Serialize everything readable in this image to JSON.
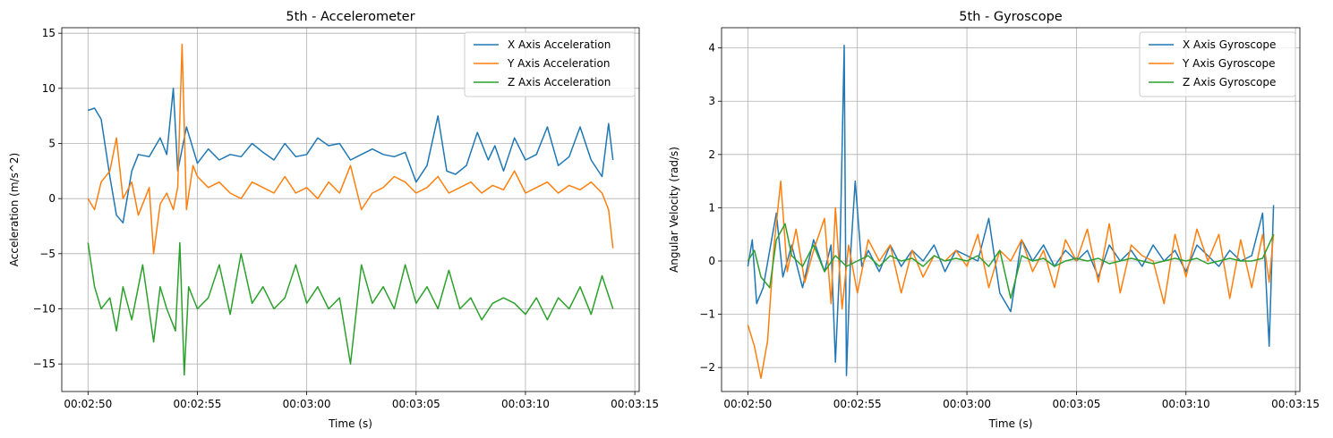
{
  "chart_data": [
    {
      "type": "line",
      "title": "5th - Accelerometer",
      "xlabel": "Time (s)",
      "ylabel": "Acceleration (m/s^2)",
      "xlim": [
        "00:02:48.8",
        "00:03:15.2"
      ],
      "ylim": [
        -17.5,
        15.5
      ],
      "xticks": [
        "00:02:50",
        "00:02:55",
        "00:03:00",
        "00:03:05",
        "00:03:10",
        "00:03:15"
      ],
      "yticks": [
        -15,
        -10,
        -5,
        0,
        5,
        10,
        15
      ],
      "grid": true,
      "legend": "top-right",
      "series": [
        {
          "name": "X Axis Acceleration",
          "color": "#1f77b4",
          "x": [
            "00:02:50.0",
            "00:02:50.3",
            "00:02:50.6",
            "00:02:51.0",
            "00:02:51.3",
            "00:02:51.6",
            "00:02:52.0",
            "00:02:52.3",
            "00:02:52.8",
            "00:02:53.3",
            "00:02:53.6",
            "00:02:53.9",
            "00:02:54.1",
            "00:02:54.5",
            "00:02:55.0",
            "00:02:55.5",
            "00:02:56.0",
            "00:02:56.5",
            "00:02:57.0",
            "00:02:57.5",
            "00:02:58.0",
            "00:02:58.5",
            "00:02:59.0",
            "00:02:59.5",
            "00:03:00.0",
            "00:03:00.5",
            "00:03:01.0",
            "00:03:01.5",
            "00:03:02.0",
            "00:03:02.5",
            "00:03:03.0",
            "00:03:03.5",
            "00:03:04.0",
            "00:03:04.5",
            "00:03:05.0",
            "00:03:05.5",
            "00:03:06.0",
            "00:03:06.4",
            "00:03:06.8",
            "00:03:07.3",
            "00:03:07.8",
            "00:03:08.3",
            "00:03:08.6",
            "00:03:09.0",
            "00:03:09.5",
            "00:03:10.0",
            "00:03:10.5",
            "00:03:11.0",
            "00:03:11.5",
            "00:03:12.0",
            "00:03:12.5",
            "00:03:13.0",
            "00:03:13.5",
            "00:03:13.8",
            "00:03:14.0"
          ],
          "y": [
            8.0,
            8.2,
            7.2,
            2.0,
            -1.5,
            -2.2,
            2.5,
            4.0,
            3.8,
            5.5,
            4.0,
            10.0,
            2.5,
            6.5,
            3.2,
            4.5,
            3.5,
            4.0,
            3.8,
            5.0,
            4.2,
            3.5,
            5.0,
            3.8,
            4.0,
            5.5,
            4.8,
            5.0,
            3.5,
            4.0,
            4.5,
            4.0,
            3.8,
            4.2,
            1.5,
            3.0,
            7.5,
            2.5,
            2.2,
            3.0,
            6.0,
            3.5,
            4.8,
            2.5,
            5.5,
            3.5,
            4.0,
            6.5,
            3.0,
            3.8,
            6.5,
            3.5,
            2.0,
            6.8,
            3.5
          ]
        },
        {
          "name": "Y Axis Acceleration",
          "color": "#ff7f0e",
          "x": [
            "00:02:50.0",
            "00:02:50.3",
            "00:02:50.6",
            "00:02:51.0",
            "00:02:51.3",
            "00:02:51.6",
            "00:02:52.0",
            "00:02:52.3",
            "00:02:52.8",
            "00:02:53.0",
            "00:02:53.3",
            "00:02:53.6",
            "00:02:53.9",
            "00:02:54.1",
            "00:02:54.3",
            "00:02:54.5",
            "00:02:54.8",
            "00:02:55.0",
            "00:02:55.5",
            "00:02:56.0",
            "00:02:56.5",
            "00:02:57.0",
            "00:02:57.5",
            "00:02:58.0",
            "00:02:58.5",
            "00:02:59.0",
            "00:02:59.5",
            "00:03:00.0",
            "00:03:00.5",
            "00:03:01.0",
            "00:03:01.5",
            "00:03:02.0",
            "00:03:02.5",
            "00:03:03.0",
            "00:03:03.5",
            "00:03:04.0",
            "00:03:04.5",
            "00:03:05.0",
            "00:03:05.5",
            "00:03:06.0",
            "00:03:06.5",
            "00:03:07.0",
            "00:03:07.5",
            "00:03:08.0",
            "00:03:08.5",
            "00:03:09.0",
            "00:03:09.5",
            "00:03:10.0",
            "00:03:10.5",
            "00:03:11.0",
            "00:03:11.5",
            "00:03:12.0",
            "00:03:12.5",
            "00:03:13.0",
            "00:03:13.5",
            "00:03:13.8",
            "00:03:14.0"
          ],
          "y": [
            0.0,
            -1.0,
            1.5,
            2.5,
            5.5,
            0.0,
            1.5,
            -1.5,
            1.0,
            -5.0,
            -0.5,
            0.5,
            -1.0,
            1.0,
            14.0,
            -1.0,
            3.0,
            2.0,
            1.0,
            1.5,
            0.5,
            0.0,
            1.5,
            1.0,
            0.5,
            2.0,
            0.5,
            1.0,
            0.0,
            1.5,
            0.5,
            3.0,
            -1.0,
            0.5,
            1.0,
            2.0,
            1.5,
            0.5,
            1.0,
            2.0,
            0.5,
            1.0,
            1.5,
            0.5,
            1.2,
            0.8,
            2.5,
            0.5,
            1.0,
            1.5,
            0.5,
            1.2,
            0.8,
            1.5,
            0.5,
            -1.0,
            -4.5
          ]
        },
        {
          "name": "Z Axis Acceleration",
          "color": "#2ca02c",
          "x": [
            "00:02:50.0",
            "00:02:50.3",
            "00:02:50.6",
            "00:02:51.0",
            "00:02:51.3",
            "00:02:51.6",
            "00:02:52.0",
            "00:02:52.5",
            "00:02:53.0",
            "00:02:53.3",
            "00:02:53.6",
            "00:02:54.0",
            "00:02:54.2",
            "00:02:54.4",
            "00:02:54.6",
            "00:02:55.0",
            "00:02:55.5",
            "00:02:56.0",
            "00:02:56.5",
            "00:02:57.0",
            "00:02:57.5",
            "00:02:58.0",
            "00:02:58.5",
            "00:02:59.0",
            "00:02:59.5",
            "00:03:00.0",
            "00:03:00.5",
            "00:03:01.0",
            "00:03:01.5",
            "00:03:02.0",
            "00:03:02.5",
            "00:03:03.0",
            "00:03:03.5",
            "00:03:04.0",
            "00:03:04.5",
            "00:03:05.0",
            "00:03:05.5",
            "00:03:06.0",
            "00:03:06.5",
            "00:03:07.0",
            "00:03:07.5",
            "00:03:08.0",
            "00:03:08.5",
            "00:03:09.0",
            "00:03:09.5",
            "00:03:10.0",
            "00:03:10.5",
            "00:03:11.0",
            "00:03:11.5",
            "00:03:12.0",
            "00:03:12.5",
            "00:03:13.0",
            "00:03:13.5",
            "00:03:14.0"
          ],
          "y": [
            -4.0,
            -8.0,
            -10.0,
            -9.0,
            -12.0,
            -8.0,
            -11.0,
            -6.0,
            -13.0,
            -8.0,
            -10.0,
            -12.0,
            -4.0,
            -16.0,
            -8.0,
            -10.0,
            -9.0,
            -6.0,
            -10.5,
            -5.0,
            -9.5,
            -8.0,
            -10.0,
            -9.0,
            -6.0,
            -9.5,
            -8.0,
            -10.0,
            -9.0,
            -15.0,
            -6.0,
            -9.5,
            -8.0,
            -10.0,
            -6.0,
            -9.5,
            -8.0,
            -10.0,
            -6.5,
            -10.0,
            -9.0,
            -11.0,
            -9.5,
            -9.0,
            -9.5,
            -10.5,
            -9.0,
            -11.0,
            -9.0,
            -10.0,
            -8.0,
            -10.5,
            -7.0,
            -10.0
          ]
        }
      ]
    },
    {
      "type": "line",
      "title": "5th - Gyroscope",
      "xlabel": "Time (s)",
      "ylabel": "Angular Velocity (rad/s)",
      "xlim": [
        "00:02:48.8",
        "00:03:15.2"
      ],
      "ylim": [
        -2.45,
        4.38
      ],
      "xticks": [
        "00:02:50",
        "00:02:55",
        "00:03:00",
        "00:03:05",
        "00:03:10",
        "00:03:15"
      ],
      "yticks": [
        -2,
        -1,
        0,
        1,
        2,
        3,
        4
      ],
      "grid": true,
      "legend": "top-right",
      "series": [
        {
          "name": "X Axis Gyroscope",
          "color": "#1f77b4",
          "x": [
            "00:02:50.0",
            "00:02:50.2",
            "00:02:50.4",
            "00:02:50.7",
            "00:02:51.0",
            "00:02:51.3",
            "00:02:51.6",
            "00:02:52.0",
            "00:02:52.5",
            "00:02:53.0",
            "00:02:53.5",
            "00:02:53.8",
            "00:02:54.0",
            "00:02:54.2",
            "00:02:54.4",
            "00:02:54.5",
            "00:02:54.7",
            "00:02:54.9",
            "00:02:55.2",
            "00:02:55.5",
            "00:02:56.0",
            "00:02:56.5",
            "00:02:57.0",
            "00:02:57.5",
            "00:02:58.0",
            "00:02:58.5",
            "00:02:59.0",
            "00:02:59.5",
            "00:03:00.0",
            "00:03:00.5",
            "00:03:01.0",
            "00:03:01.5",
            "00:03:02.0",
            "00:03:02.5",
            "00:03:03.0",
            "00:03:03.5",
            "00:03:04.0",
            "00:03:04.5",
            "00:03:05.0",
            "00:03:05.5",
            "00:03:06.0",
            "00:03:06.5",
            "00:03:07.0",
            "00:03:07.5",
            "00:03:08.0",
            "00:03:08.5",
            "00:03:09.0",
            "00:03:09.5",
            "00:03:10.0",
            "00:03:10.5",
            "00:03:11.0",
            "00:03:11.5",
            "00:03:12.0",
            "00:03:12.5",
            "00:03:13.0",
            "00:03:13.5",
            "00:03:13.8",
            "00:03:14.0"
          ],
          "y": [
            -0.1,
            0.4,
            -0.8,
            -0.5,
            0.2,
            0.9,
            -0.3,
            0.3,
            -0.5,
            0.4,
            -0.2,
            0.3,
            -1.9,
            0.0,
            4.05,
            -2.15,
            0.2,
            1.5,
            -0.1,
            0.2,
            -0.2,
            0.3,
            -0.1,
            0.2,
            0.0,
            0.3,
            -0.2,
            0.2,
            0.1,
            0.0,
            0.8,
            -0.6,
            -0.95,
            0.4,
            0.0,
            0.3,
            -0.1,
            0.2,
            0.0,
            0.2,
            -0.3,
            0.3,
            0.0,
            0.2,
            -0.1,
            0.3,
            0.0,
            0.2,
            -0.2,
            0.3,
            0.1,
            -0.1,
            0.2,
            0.0,
            0.1,
            0.9,
            -1.6,
            1.05
          ]
        },
        {
          "name": "Y Axis Gyroscope",
          "color": "#ff7f0e",
          "x": [
            "00:02:50.0",
            "00:02:50.3",
            "00:02:50.6",
            "00:02:50.9",
            "00:02:51.2",
            "00:02:51.5",
            "00:02:51.8",
            "00:02:52.2",
            "00:02:52.6",
            "00:02:53.0",
            "00:02:53.5",
            "00:02:53.8",
            "00:02:54.0",
            "00:02:54.3",
            "00:02:54.6",
            "00:02:55.0",
            "00:02:55.5",
            "00:02:56.0",
            "00:02:56.5",
            "00:02:57.0",
            "00:02:57.5",
            "00:02:58.0",
            "00:02:58.5",
            "00:02:59.0",
            "00:02:59.5",
            "00:03:00.0",
            "00:03:00.5",
            "00:03:01.0",
            "00:03:01.5",
            "00:03:02.0",
            "00:03:02.5",
            "00:03:03.0",
            "00:03:03.5",
            "00:03:04.0",
            "00:03:04.5",
            "00:03:05.0",
            "00:03:05.5",
            "00:03:06.0",
            "00:03:06.5",
            "00:03:07.0",
            "00:03:07.5",
            "00:03:08.0",
            "00:03:08.5",
            "00:03:09.0",
            "00:03:09.5",
            "00:03:10.0",
            "00:03:10.5",
            "00:03:11.0",
            "00:03:11.5",
            "00:03:12.0",
            "00:03:12.5",
            "00:03:13.0",
            "00:03:13.5",
            "00:03:13.8",
            "00:03:14.0"
          ],
          "y": [
            -1.2,
            -1.6,
            -2.2,
            -1.5,
            0.3,
            1.5,
            -0.2,
            0.6,
            -0.4,
            0.2,
            0.8,
            -0.8,
            1.0,
            -0.9,
            0.3,
            -0.6,
            0.4,
            0.0,
            0.3,
            -0.6,
            0.2,
            -0.3,
            0.1,
            0.0,
            0.2,
            -0.1,
            0.5,
            -0.5,
            0.2,
            0.0,
            0.4,
            -0.2,
            0.2,
            -0.5,
            0.4,
            0.0,
            0.6,
            -0.4,
            0.7,
            -0.6,
            0.3,
            0.1,
            0.0,
            -0.8,
            0.5,
            -0.3,
            0.6,
            0.0,
            0.5,
            -0.7,
            0.4,
            -0.5,
            0.5,
            -0.4,
            0.5
          ]
        },
        {
          "name": "Z Axis Gyroscope",
          "color": "#2ca02c",
          "x": [
            "00:02:50.0",
            "00:02:50.3",
            "00:02:50.6",
            "00:02:51.0",
            "00:02:51.3",
            "00:02:51.7",
            "00:02:52.0",
            "00:02:52.5",
            "00:02:53.0",
            "00:02:53.5",
            "00:02:54.0",
            "00:02:54.5",
            "00:02:55.0",
            "00:02:55.5",
            "00:02:56.0",
            "00:02:56.5",
            "00:02:57.0",
            "00:02:57.5",
            "00:02:58.0",
            "00:02:58.5",
            "00:02:59.0",
            "00:02:59.5",
            "00:03:00.0",
            "00:03:00.5",
            "00:03:01.0",
            "00:03:01.5",
            "00:03:02.0",
            "00:03:02.5",
            "00:03:03.0",
            "00:03:03.5",
            "00:03:04.0",
            "00:03:04.5",
            "00:03:05.0",
            "00:03:05.5",
            "00:03:06.0",
            "00:03:06.5",
            "00:03:07.0",
            "00:03:07.5",
            "00:03:08.0",
            "00:03:08.5",
            "00:03:09.0",
            "00:03:09.5",
            "00:03:10.0",
            "00:03:10.5",
            "00:03:11.0",
            "00:03:11.5",
            "00:03:12.0",
            "00:03:12.5",
            "00:03:13.0",
            "00:03:13.5",
            "00:03:14.0"
          ],
          "y": [
            0.0,
            0.2,
            -0.3,
            -0.5,
            0.4,
            0.7,
            0.1,
            -0.1,
            0.3,
            -0.2,
            0.1,
            -0.1,
            0.0,
            0.1,
            -0.1,
            0.1,
            0.0,
            0.05,
            -0.1,
            0.1,
            0.0,
            0.05,
            0.0,
            0.1,
            -0.1,
            0.2,
            -0.7,
            0.1,
            0.0,
            0.05,
            -0.1,
            0.0,
            0.05,
            0.0,
            0.05,
            -0.05,
            0.0,
            0.05,
            0.0,
            -0.05,
            0.0,
            0.05,
            0.0,
            0.05,
            -0.05,
            0.0,
            0.05,
            0.0,
            0.0,
            0.05,
            0.5
          ]
        }
      ]
    }
  ]
}
